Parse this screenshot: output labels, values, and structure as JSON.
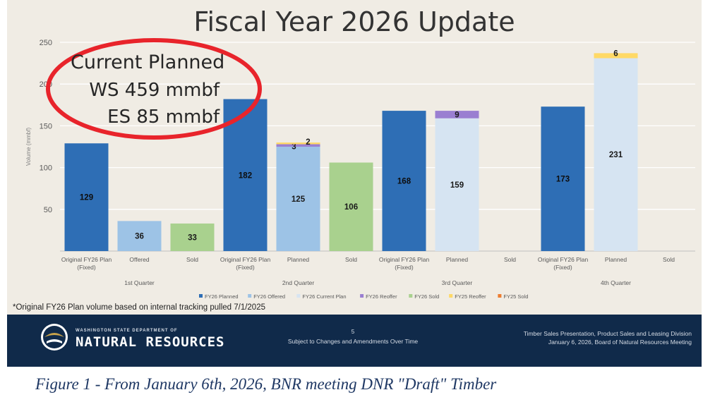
{
  "slide": {
    "title": "Fiscal Year 2026 Update",
    "footnote": "*Original FY26 Plan volume based on internal tracking pulled 7/1/2025"
  },
  "annotation": {
    "line1": "Current Planned",
    "line2": "WS 459 mmbf",
    "line3": "ES 85 mmbf",
    "circle_color": "#e8242b"
  },
  "footer": {
    "agency_small": "WASHINGTON STATE DEPARTMENT OF",
    "agency_big": "NATURAL RESOURCES",
    "page_number": "5",
    "subject": "Subject to Changes and Amendments Over Time",
    "right_line1": "Timber Sales Presentation, Product Sales and Leasing Division",
    "right_line2": "January 6, 2026, Board of Natural Resources Meeting",
    "background": "#102a4a"
  },
  "caption": "Figure 1 - From January 6th, 2026, BNR meeting DNR \"Draft\" Timber",
  "chart_data": {
    "type": "bar",
    "ylabel": "Volume (mmbf)",
    "ylim": [
      0,
      250
    ],
    "yticks": [
      "50",
      "100",
      "150",
      "200",
      "250"
    ],
    "grid": true,
    "legend_position": "bottom",
    "categories": [
      "Original FY26 Plan (Fixed)",
      "Offered",
      "Sold",
      "Original FY26 Plan (Fixed)",
      "Planned",
      "Sold",
      "Original FY26 Plan (Fixed)",
      "Planned",
      "Sold",
      "Original FY26 Plan (Fixed)",
      "Planned",
      "Sold"
    ],
    "groups": [
      {
        "name": "1st Quarter",
        "start": 0,
        "end": 2
      },
      {
        "name": "2nd Quarter",
        "start": 3,
        "end": 5
      },
      {
        "name": "3rd Quarter",
        "start": 6,
        "end": 8
      },
      {
        "name": "4th Quarter",
        "start": 9,
        "end": 11
      }
    ],
    "series": [
      {
        "name": "FY26 Planned",
        "color": "#2e6eb5",
        "values": [
          129,
          null,
          null,
          182,
          null,
          null,
          168,
          null,
          null,
          173,
          null,
          null
        ],
        "labels": [
          "129",
          "",
          "",
          "182",
          "",
          "",
          "168",
          "",
          "",
          "173",
          "",
          ""
        ]
      },
      {
        "name": "FY26 Offered",
        "color": "#9dc3e6",
        "values": [
          null,
          36,
          null,
          null,
          125,
          null,
          null,
          null,
          null,
          null,
          null,
          null
        ],
        "labels": [
          "",
          "36",
          "",
          "",
          "125",
          "",
          "",
          "",
          "",
          "",
          "",
          ""
        ]
      },
      {
        "name": "FY26 Current Plan",
        "color": "#d6e4f2",
        "values": [
          null,
          null,
          null,
          null,
          null,
          null,
          null,
          159,
          null,
          null,
          231,
          null
        ],
        "labels": [
          "",
          "",
          "",
          "",
          "",
          "",
          "",
          "159",
          "",
          "",
          "231",
          ""
        ]
      },
      {
        "name": "FY26 Reoffer",
        "color": "#9a7fd1",
        "values": [
          null,
          null,
          null,
          null,
          3,
          null,
          null,
          9,
          null,
          null,
          null,
          null
        ],
        "labels": [
          "",
          "",
          "",
          "",
          "3",
          "",
          "",
          "9",
          "",
          "",
          "",
          ""
        ]
      },
      {
        "name": "FY26 Sold",
        "color": "#a9d18e",
        "values": [
          null,
          null,
          33,
          null,
          null,
          106,
          null,
          null,
          null,
          null,
          null,
          null
        ],
        "labels": [
          "",
          "",
          "33",
          "",
          "",
          "106",
          "",
          "",
          "",
          "",
          "",
          ""
        ]
      },
      {
        "name": "FY25 Reoffer",
        "color": "#ffd966",
        "values": [
          null,
          null,
          null,
          null,
          2,
          null,
          null,
          null,
          null,
          null,
          6,
          null
        ],
        "labels": [
          "",
          "",
          "",
          "",
          "2",
          "",
          "",
          "",
          "",
          "",
          "6",
          ""
        ]
      },
      {
        "name": "FY25 Sold",
        "color": "#ed7d31",
        "values": [
          null,
          null,
          null,
          null,
          null,
          null,
          null,
          null,
          null,
          null,
          null,
          null
        ],
        "labels": [
          "",
          "",
          "",
          "",
          "",
          "",
          "",
          "",
          "",
          "",
          "",
          ""
        ]
      }
    ]
  }
}
